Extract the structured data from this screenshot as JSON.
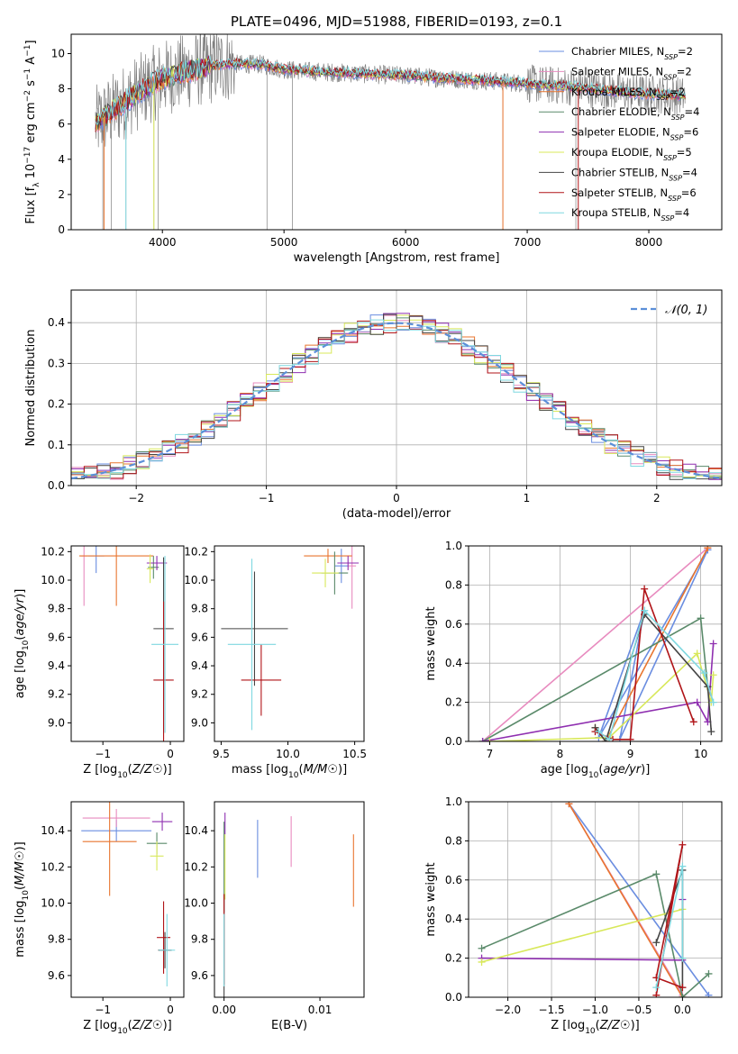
{
  "figure_title": "PLATE=0496, MJD=51988, FIBERID=0193, z=0.1",
  "colors": {
    "Chabrier MILES": "#6a8de0",
    "Salpeter MILES": "#e88bbf",
    "Kroupa MILES": "#e8752f",
    "Chabrier ELODIE": "#5a8a6a",
    "Salpeter ELODIE": "#8f2fb0",
    "Kroupa ELODIE": "#d8e85a",
    "Chabrier STELIB": "#444444",
    "Salpeter STELIB": "#b01418",
    "Kroupa STELIB": "#7fd8e0",
    "data": "#808080",
    "normal": "#5b8fd8"
  },
  "chart_data": [
    {
      "id": "spectrum",
      "type": "line",
      "title": "",
      "xlabel": "wavelength [Angstrom, rest frame]",
      "ylabel": "Flux [f_λ 10^-17 erg cm^-2 s^-1 A^-1]",
      "xlim": [
        3250,
        8600
      ],
      "ylim": [
        0,
        11.1
      ],
      "xticks": [
        4000,
        5000,
        6000,
        7000,
        8000
      ],
      "yticks": [
        0,
        2,
        4,
        6,
        8,
        10
      ],
      "legend_position": "top-right",
      "legend": [
        {
          "name": "Chabrier MILES",
          "sub": "SSP",
          "n": "2"
        },
        {
          "name": "Salpeter MILES",
          "sub": "SSP",
          "n": "2"
        },
        {
          "name": "Kroupa MILES",
          "sub": "SSP",
          "n": "2"
        },
        {
          "name": "Chabrier ELODIE",
          "sub": "SSP",
          "n": "4"
        },
        {
          "name": "Salpeter ELODIE",
          "sub": "SSP",
          "n": "6"
        },
        {
          "name": "Kroupa ELODIE",
          "sub": "SSP",
          "n": "5"
        },
        {
          "name": "Chabrier STELIB",
          "sub": "SSP",
          "n": "4"
        },
        {
          "name": "Salpeter STELIB",
          "sub": "SSP",
          "n": "6"
        },
        {
          "name": "Kroupa STELIB",
          "sub": "SSP",
          "n": "4"
        }
      ],
      "continuum": {
        "x": [
          3450,
          3600,
          3800,
          4000,
          4200,
          4500,
          4800,
          5000,
          5200,
          5500,
          5800,
          6000,
          6300,
          6600,
          7000,
          7400,
          7800,
          8300
        ],
        "y": [
          6.0,
          6.8,
          7.8,
          8.6,
          9.0,
          9.4,
          9.4,
          9.1,
          9.0,
          8.9,
          8.8,
          8.75,
          8.6,
          8.5,
          8.3,
          8.1,
          7.8,
          7.6
        ]
      }
    },
    {
      "id": "residuals",
      "type": "line",
      "title": "",
      "xlabel": "(data-model)/error",
      "ylabel": "Normed distribution",
      "xlim": [
        -2.5,
        2.5
      ],
      "ylim": [
        0,
        0.48
      ],
      "xticks": [
        -2,
        -1,
        0,
        1,
        2
      ],
      "yticks": [
        0.0,
        0.1,
        0.2,
        0.3,
        0.4
      ],
      "grid": true,
      "legend_position": "top-right",
      "legend": "𝒩(0, 1)",
      "bin_width": 0.1
    },
    {
      "id": "age-vs-Z",
      "type": "scatter",
      "xlabel": "Z [log10(Z/Z☉)]",
      "ylabel": "age  [log10(age/yr)]",
      "xlim": [
        -1.47,
        0.2
      ],
      "ylim": [
        8.87,
        10.24
      ],
      "xticks": [
        -1,
        0
      ],
      "yticks": [
        9.0,
        9.2,
        9.4,
        9.6,
        9.8,
        10.0,
        10.2
      ],
      "points": [
        {
          "model": "Chabrier MILES",
          "x": -1.1,
          "y": 10.17,
          "xerr": 0.12,
          "yerr": 0.12
        },
        {
          "model": "Salpeter MILES",
          "x": -1.28,
          "y": 10.17,
          "xerr": 0.05,
          "yerr": 0.35
        },
        {
          "model": "Kroupa MILES",
          "x": -0.8,
          "y": 10.17,
          "xerr": 0.55,
          "yerr": 0.35
        },
        {
          "model": "Chabrier ELODIE",
          "x": -0.25,
          "y": 10.09,
          "xerr": 0.08,
          "yerr": 0.08
        },
        {
          "model": "Salpeter ELODIE",
          "x": -0.2,
          "y": 10.12,
          "xerr": 0.15,
          "yerr": 0.05
        },
        {
          "model": "Kroupa ELODIE",
          "x": -0.3,
          "y": 10.08,
          "xerr": 0.05,
          "yerr": 0.1
        },
        {
          "model": "Chabrier STELIB",
          "x": -0.1,
          "y": 9.66,
          "xerr": 0.15,
          "yerr": 0.5
        },
        {
          "model": "Salpeter STELIB",
          "x": -0.1,
          "y": 9.3,
          "xerr": 0.15,
          "yerr": 0.55
        },
        {
          "model": "Kroupa STELIB",
          "x": -0.08,
          "y": 9.55,
          "xerr": 0.2,
          "yerr": 0.62
        }
      ]
    },
    {
      "id": "age-vs-mass",
      "type": "scatter",
      "xlabel": "mass [log10(M/M☉)]",
      "ylabel": "",
      "xlim": [
        9.45,
        10.57
      ],
      "ylim": [
        8.87,
        10.24
      ],
      "xticks": [
        9.5,
        10.0,
        10.5
      ],
      "yticks": [
        9.0,
        9.2,
        9.4,
        9.6,
        9.8,
        10.0,
        10.2
      ],
      "points": [
        {
          "model": "Chabrier MILES",
          "x": 10.4,
          "y": 10.1,
          "xerr": 0.05,
          "yerr": 0.12
        },
        {
          "model": "Salpeter MILES",
          "x": 10.48,
          "y": 10.1,
          "xerr": 0.03,
          "yerr": 0.3
        },
        {
          "model": "Kroupa MILES",
          "x": 10.3,
          "y": 10.17,
          "xerr": 0.18,
          "yerr": 0.05
        },
        {
          "model": "Chabrier ELODIE",
          "x": 10.35,
          "y": 10.05,
          "xerr": 0.1,
          "yerr": 0.15
        },
        {
          "model": "Salpeter ELODIE",
          "x": 10.45,
          "y": 10.12,
          "xerr": 0.08,
          "yerr": 0.05
        },
        {
          "model": "Kroupa ELODIE",
          "x": 10.28,
          "y": 10.05,
          "xerr": 0.1,
          "yerr": 0.1
        },
        {
          "model": "Chabrier STELIB",
          "x": 9.75,
          "y": 9.66,
          "xerr": 0.25,
          "yerr": 0.4
        },
        {
          "model": "Salpeter STELIB",
          "x": 9.8,
          "y": 9.3,
          "xerr": 0.15,
          "yerr": 0.25
        },
        {
          "model": "Kroupa STELIB",
          "x": 9.73,
          "y": 9.55,
          "xerr": 0.18,
          "yerr": 0.6
        }
      ]
    },
    {
      "id": "mass-weight-vs-age",
      "type": "line",
      "xlabel": "age  [log10(age/yr)]",
      "ylabel": "mass weight",
      "xlim": [
        6.7,
        10.3
      ],
      "ylim": [
        0,
        1.0
      ],
      "xticks": [
        7,
        8,
        9,
        10
      ],
      "yticks": [
        0.0,
        0.2,
        0.4,
        0.6,
        0.8,
        1.0
      ],
      "grid": true,
      "series": [
        {
          "model": "Chabrier MILES",
          "x": [
            10.1,
            8.55,
            9.2,
            8.85,
            10.1
          ],
          "y": [
            0.98,
            0.02,
            0.67,
            0.01,
            0.98
          ]
        },
        {
          "model": "Salpeter MILES",
          "x": [
            6.9,
            10.1
          ],
          "y": [
            0.0,
            0.99
          ]
        },
        {
          "model": "Kroupa MILES",
          "x": [
            8.5,
            8.65,
            10.1
          ],
          "y": [
            0.07,
            0.0,
            0.99
          ]
        },
        {
          "model": "Chabrier ELODIE",
          "x": [
            6.9,
            10.0,
            10.1
          ],
          "y": [
            0.0,
            0.63,
            0.28
          ]
        },
        {
          "model": "Salpeter ELODIE",
          "x": [
            6.9,
            9.95,
            10.1,
            10.18
          ],
          "y": [
            0.0,
            0.2,
            0.1,
            0.5
          ]
        },
        {
          "model": "Kroupa ELODIE",
          "x": [
            7.0,
            8.7,
            9.95,
            10.15,
            10.18
          ],
          "y": [
            0.0,
            0.02,
            0.45,
            0.2,
            0.34
          ]
        },
        {
          "model": "Chabrier STELIB",
          "x": [
            8.5,
            8.65,
            9.2,
            10.1,
            10.15
          ],
          "y": [
            0.07,
            0.0,
            0.65,
            0.28,
            0.05
          ]
        },
        {
          "model": "Salpeter STELIB",
          "x": [
            8.5,
            8.75,
            9.0,
            9.2,
            9.9
          ],
          "y": [
            0.05,
            0.01,
            0.01,
            0.78,
            0.1
          ]
        },
        {
          "model": "Kroupa STELIB",
          "x": [
            8.55,
            8.7,
            9.2,
            10.05,
            10.18
          ],
          "y": [
            0.05,
            0.01,
            0.67,
            0.35,
            0.2
          ]
        }
      ]
    },
    {
      "id": "mass-vs-Z",
      "type": "scatter",
      "xlabel": "Z [log10(Z/Z☉)]",
      "ylabel": "mass [log10(M/M☉)]",
      "xlim": [
        -1.47,
        0.2
      ],
      "ylim": [
        9.48,
        10.56
      ],
      "xticks": [
        -1,
        0
      ],
      "yticks": [
        9.6,
        9.8,
        10.0,
        10.2,
        10.4
      ],
      "points": [
        {
          "model": "Chabrier MILES",
          "x": -0.8,
          "y": 10.4,
          "xerr": 0.52,
          "yerr": 0.06
        },
        {
          "model": "Salpeter MILES",
          "x": -0.8,
          "y": 10.47,
          "xerr": 0.5,
          "yerr": 0.05
        },
        {
          "model": "Kroupa MILES",
          "x": -0.9,
          "y": 10.34,
          "xerr": 0.4,
          "yerr": 0.3
        },
        {
          "model": "Chabrier ELODIE",
          "x": -0.2,
          "y": 10.33,
          "xerr": 0.15,
          "yerr": 0.06
        },
        {
          "model": "Salpeter ELODIE",
          "x": -0.12,
          "y": 10.45,
          "xerr": 0.15,
          "yerr": 0.05
        },
        {
          "model": "Kroupa ELODIE",
          "x": -0.2,
          "y": 10.26,
          "xerr": 0.1,
          "yerr": 0.08
        },
        {
          "model": "Chabrier STELIB",
          "x": -0.08,
          "y": 9.74,
          "xerr": 0.1,
          "yerr": 0.1
        },
        {
          "model": "Salpeter STELIB",
          "x": -0.1,
          "y": 9.81,
          "xerr": 0.1,
          "yerr": 0.2
        },
        {
          "model": "Kroupa STELIB",
          "x": -0.05,
          "y": 9.74,
          "xerr": 0.12,
          "yerr": 0.2
        }
      ]
    },
    {
      "id": "mass-vs-EBV",
      "type": "scatter",
      "xlabel": "E(B-V)",
      "ylabel": "",
      "xlim": [
        -0.001,
        0.0146
      ],
      "ylim": [
        9.48,
        10.56
      ],
      "xticks": [
        0.0,
        0.01
      ],
      "yticks": [
        9.6,
        9.8,
        10.0,
        10.2,
        10.4
      ],
      "points": [
        {
          "model": "Chabrier MILES",
          "x": 0.0035,
          "y": 10.3,
          "xerr": 0,
          "yerr": 0.16
        },
        {
          "model": "Salpeter MILES",
          "x": 0.007,
          "y": 10.34,
          "xerr": 0,
          "yerr": 0.14
        },
        {
          "model": "Kroupa MILES",
          "x": 0.0135,
          "y": 10.18,
          "xerr": 0,
          "yerr": 0.2
        },
        {
          "model": "Chabrier ELODIE",
          "x": 0.0,
          "y": 10.2,
          "xerr": 0,
          "yerr": 0.25
        },
        {
          "model": "Salpeter ELODIE",
          "x": 0.0001,
          "y": 10.44,
          "xerr": 0,
          "yerr": 0.06
        },
        {
          "model": "Kroupa ELODIE",
          "x": 0.0001,
          "y": 10.2,
          "xerr": 0,
          "yerr": 0.18
        },
        {
          "model": "Chabrier STELIB",
          "x": 0.0,
          "y": 9.75,
          "xerr": 0,
          "yerr": 0.3
        },
        {
          "model": "Salpeter STELIB",
          "x": 0.0,
          "y": 9.8,
          "xerr": 0,
          "yerr": 0.25
        },
        {
          "model": "Kroupa STELIB",
          "x": 0.0,
          "y": 9.74,
          "xerr": 0,
          "yerr": 0.2
        }
      ]
    },
    {
      "id": "mass-weight-vs-Z",
      "type": "line",
      "xlabel": "Z [log10(Z/Z☉)]",
      "ylabel": "mass weight",
      "xlim": [
        -2.45,
        0.45
      ],
      "ylim": [
        0,
        1.0
      ],
      "xticks": [
        -2.0,
        -1.5,
        -1.0,
        -0.5,
        0.0
      ],
      "yticks": [
        0.0,
        0.2,
        0.4,
        0.6,
        0.8,
        1.0
      ],
      "grid": true,
      "series": [
        {
          "model": "Chabrier MILES",
          "x": [
            -1.3,
            0.3
          ],
          "y": [
            0.99,
            0.01
          ]
        },
        {
          "model": "Salpeter MILES",
          "x": [
            -1.3,
            0.0
          ],
          "y": [
            0.99,
            0.01
          ]
        },
        {
          "model": "Kroupa MILES",
          "x": [
            -1.3,
            0.0
          ],
          "y": [
            0.99,
            0.0
          ]
        },
        {
          "model": "Chabrier ELODIE",
          "x": [
            -2.3,
            -0.3,
            0.0,
            0.3
          ],
          "y": [
            0.25,
            0.63,
            0.0,
            0.12
          ]
        },
        {
          "model": "Salpeter ELODIE",
          "x": [
            -2.3,
            0.0,
            0.0
          ],
          "y": [
            0.2,
            0.19,
            0.5
          ]
        },
        {
          "model": "Kroupa ELODIE",
          "x": [
            -2.3,
            0.0,
            0.0
          ],
          "y": [
            0.18,
            0.45,
            0.2
          ]
        },
        {
          "model": "Chabrier STELIB",
          "x": [
            -0.3,
            0.0,
            0.0
          ],
          "y": [
            0.28,
            0.65,
            0.05
          ]
        },
        {
          "model": "Salpeter STELIB",
          "x": [
            -0.3,
            0.0,
            -0.3,
            0.0
          ],
          "y": [
            0.01,
            0.78,
            0.1,
            0.05
          ]
        },
        {
          "model": "Kroupa STELIB",
          "x": [
            -0.3,
            0.0,
            0.0
          ],
          "y": [
            0.05,
            0.67,
            0.2
          ]
        }
      ]
    }
  ]
}
